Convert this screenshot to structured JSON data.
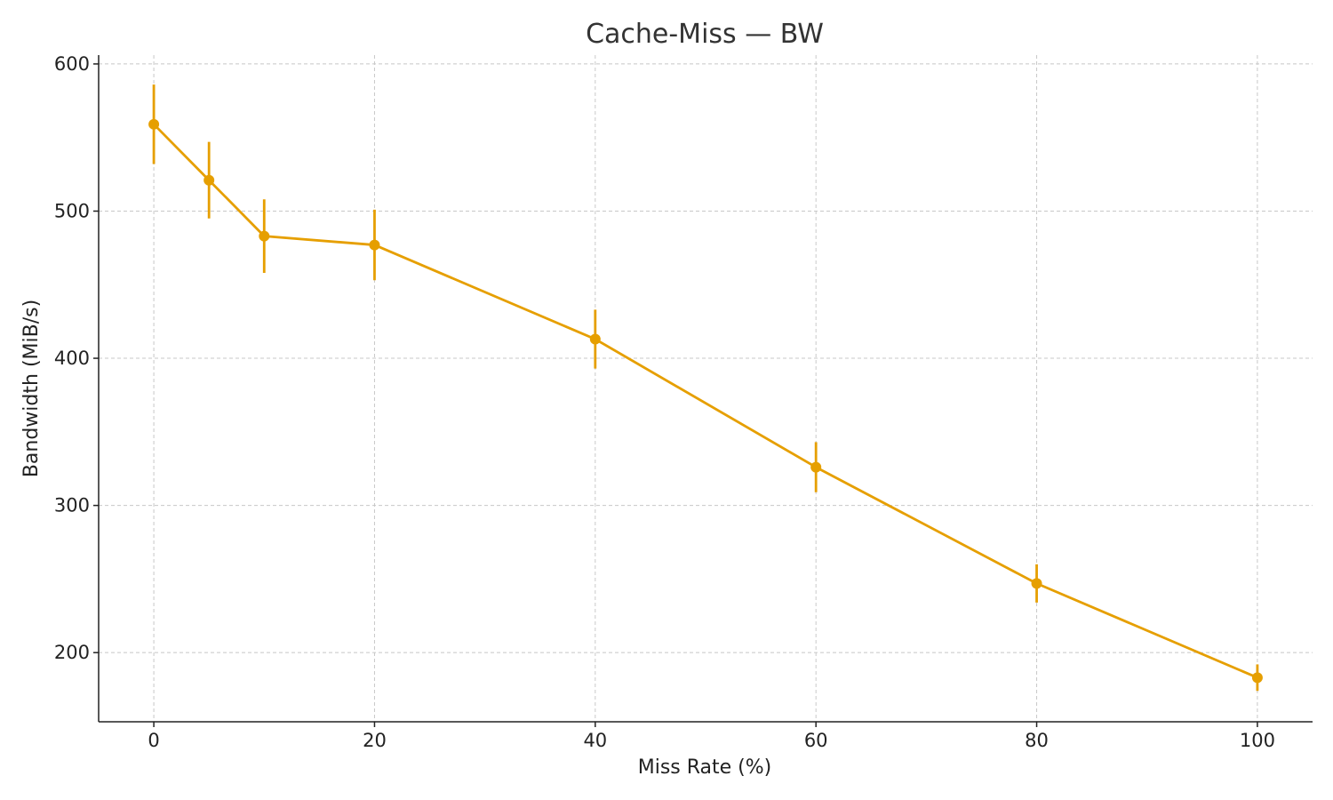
{
  "chart_data": {
    "type": "line",
    "title": "Cache-Miss — BW",
    "xlabel": "Miss Rate (%)",
    "ylabel": "Bandwidth (MiB/s)",
    "xlim": [
      -5,
      105
    ],
    "ylim": [
      153,
      606
    ],
    "xticks": [
      0,
      20,
      40,
      60,
      80,
      100
    ],
    "yticks": [
      200,
      300,
      400,
      500,
      600
    ],
    "grid": true,
    "color": "#E69F00",
    "series": [
      {
        "x": [
          0,
          5,
          10,
          20,
          40,
          60,
          80,
          100
        ],
        "values": [
          559,
          521,
          483,
          477,
          413,
          326,
          247,
          183
        ],
        "err": [
          27,
          26,
          25,
          24,
          20,
          17,
          13,
          9
        ]
      }
    ]
  }
}
